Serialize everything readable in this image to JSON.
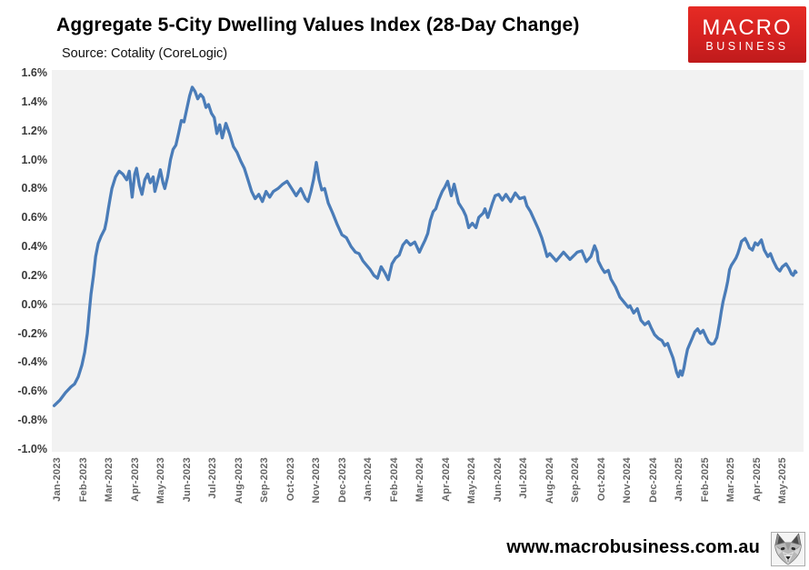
{
  "header": {
    "title": "Aggregate 5-City Dwelling Values Index (28-Day Change)",
    "source": "Source: Cotality (CoreLogic)",
    "logo": {
      "line1": "MACRO",
      "line2": "BUSINESS",
      "bg_color": "#d42120"
    }
  },
  "footer": {
    "url": "www.macrobusiness.com.au"
  },
  "chart_data": {
    "type": "line",
    "title": "Aggregate 5-City Dwelling Values Index (28-Day Change)",
    "source": "Cotality (CoreLogic)",
    "series_name": "28-day change (%)",
    "line_color": "#4a7cb8",
    "plot_bg": "#f2f2f2",
    "zero_gridline": true,
    "gridline_color": "#d4d4d4",
    "legend": "none",
    "ylim": [
      -1.0,
      1.6
    ],
    "y_tick_labels": [
      "1.6%",
      "1.4%",
      "1.2%",
      "1.0%",
      "0.8%",
      "0.6%",
      "0.4%",
      "0.2%",
      "0.0%",
      "-0.2%",
      "-0.4%",
      "-0.6%",
      "-0.8%",
      "-1.0%"
    ],
    "x_tick_labels": [
      "Jan-2023",
      "Feb-2023",
      "Mar-2023",
      "Apr-2023",
      "May-2023",
      "Jun-2023",
      "Jul-2023",
      "Aug-2023",
      "Sep-2023",
      "Oct-2023",
      "Nov-2023",
      "Dec-2023",
      "Jan-2024",
      "Feb-2024",
      "Mar-2024",
      "Apr-2024",
      "May-2024",
      "Jun-2024",
      "Jul-2024",
      "Aug-2024",
      "Sep-2024",
      "Oct-2024",
      "Nov-2024",
      "Dec-2024",
      "Jan-2025",
      "Feb-2025",
      "Mar-2025",
      "Apr-2025",
      "May-2025"
    ],
    "x_unit": "months (0 = Jan-2023 tick, 28 = May-2025 tick)",
    "points": [
      [
        -0.19,
        -0.7
      ],
      [
        0.04,
        -0.66
      ],
      [
        0.25,
        -0.61
      ],
      [
        0.46,
        -0.57
      ],
      [
        0.6,
        -0.55
      ],
      [
        0.74,
        -0.5
      ],
      [
        0.88,
        -0.42
      ],
      [
        0.99,
        -0.33
      ],
      [
        1.09,
        -0.2
      ],
      [
        1.16,
        -0.06
      ],
      [
        1.23,
        0.07
      ],
      [
        1.33,
        0.2
      ],
      [
        1.41,
        0.33
      ],
      [
        1.51,
        0.42
      ],
      [
        1.62,
        0.47
      ],
      [
        1.76,
        0.52
      ],
      [
        1.83,
        0.58
      ],
      [
        1.9,
        0.66
      ],
      [
        1.97,
        0.73
      ],
      [
        2.04,
        0.8
      ],
      [
        2.18,
        0.88
      ],
      [
        2.32,
        0.92
      ],
      [
        2.46,
        0.9
      ],
      [
        2.61,
        0.86
      ],
      [
        2.71,
        0.92
      ],
      [
        2.82,
        0.74
      ],
      [
        2.92,
        0.9
      ],
      [
        2.99,
        0.94
      ],
      [
        3.1,
        0.82
      ],
      [
        3.2,
        0.76
      ],
      [
        3.31,
        0.86
      ],
      [
        3.42,
        0.9
      ],
      [
        3.52,
        0.84
      ],
      [
        3.63,
        0.88
      ],
      [
        3.7,
        0.78
      ],
      [
        3.8,
        0.85
      ],
      [
        3.91,
        0.93
      ],
      [
        4.01,
        0.84
      ],
      [
        4.08,
        0.8
      ],
      [
        4.19,
        0.88
      ],
      [
        4.3,
        1.0
      ],
      [
        4.4,
        1.07
      ],
      [
        4.51,
        1.1
      ],
      [
        4.61,
        1.18
      ],
      [
        4.72,
        1.27
      ],
      [
        4.82,
        1.26
      ],
      [
        4.93,
        1.35
      ],
      [
        5.04,
        1.44
      ],
      [
        5.14,
        1.5
      ],
      [
        5.25,
        1.47
      ],
      [
        5.35,
        1.42
      ],
      [
        5.46,
        1.45
      ],
      [
        5.56,
        1.43
      ],
      [
        5.67,
        1.36
      ],
      [
        5.77,
        1.38
      ],
      [
        5.88,
        1.32
      ],
      [
        5.99,
        1.29
      ],
      [
        6.09,
        1.18
      ],
      [
        6.2,
        1.24
      ],
      [
        6.3,
        1.15
      ],
      [
        6.44,
        1.25
      ],
      [
        6.58,
        1.18
      ],
      [
        6.73,
        1.09
      ],
      [
        6.87,
        1.05
      ],
      [
        7.01,
        0.99
      ],
      [
        7.15,
        0.94
      ],
      [
        7.29,
        0.86
      ],
      [
        7.43,
        0.78
      ],
      [
        7.57,
        0.73
      ],
      [
        7.71,
        0.76
      ],
      [
        7.85,
        0.71
      ],
      [
        7.99,
        0.78
      ],
      [
        8.13,
        0.74
      ],
      [
        8.27,
        0.78
      ],
      [
        8.45,
        0.8
      ],
      [
        8.63,
        0.83
      ],
      [
        8.8,
        0.85
      ],
      [
        8.98,
        0.8
      ],
      [
        9.15,
        0.75
      ],
      [
        9.33,
        0.8
      ],
      [
        9.51,
        0.73
      ],
      [
        9.61,
        0.71
      ],
      [
        9.72,
        0.78
      ],
      [
        9.82,
        0.86
      ],
      [
        9.93,
        0.98
      ],
      [
        10.04,
        0.86
      ],
      [
        10.14,
        0.79
      ],
      [
        10.25,
        0.8
      ],
      [
        10.39,
        0.7
      ],
      [
        10.56,
        0.63
      ],
      [
        10.74,
        0.55
      ],
      [
        10.92,
        0.48
      ],
      [
        11.09,
        0.46
      ],
      [
        11.27,
        0.4
      ],
      [
        11.44,
        0.36
      ],
      [
        11.58,
        0.35
      ],
      [
        11.73,
        0.3
      ],
      [
        11.87,
        0.27
      ],
      [
        12.01,
        0.24
      ],
      [
        12.15,
        0.2
      ],
      [
        12.29,
        0.18
      ],
      [
        12.43,
        0.26
      ],
      [
        12.57,
        0.22
      ],
      [
        12.71,
        0.17
      ],
      [
        12.85,
        0.28
      ],
      [
        12.99,
        0.32
      ],
      [
        13.13,
        0.34
      ],
      [
        13.27,
        0.41
      ],
      [
        13.41,
        0.44
      ],
      [
        13.56,
        0.41
      ],
      [
        13.73,
        0.43
      ],
      [
        13.91,
        0.36
      ],
      [
        14.01,
        0.4
      ],
      [
        14.12,
        0.44
      ],
      [
        14.23,
        0.49
      ],
      [
        14.33,
        0.58
      ],
      [
        14.44,
        0.64
      ],
      [
        14.54,
        0.66
      ],
      [
        14.65,
        0.72
      ],
      [
        14.79,
        0.78
      ],
      [
        14.89,
        0.81
      ],
      [
        15.0,
        0.85
      ],
      [
        15.14,
        0.75
      ],
      [
        15.25,
        0.83
      ],
      [
        15.42,
        0.7
      ],
      [
        15.6,
        0.65
      ],
      [
        15.7,
        0.61
      ],
      [
        15.81,
        0.53
      ],
      [
        15.95,
        0.56
      ],
      [
        16.09,
        0.53
      ],
      [
        16.2,
        0.6
      ],
      [
        16.37,
        0.63
      ],
      [
        16.44,
        0.66
      ],
      [
        16.55,
        0.6
      ],
      [
        16.73,
        0.7
      ],
      [
        16.83,
        0.75
      ],
      [
        16.97,
        0.76
      ],
      [
        17.11,
        0.72
      ],
      [
        17.25,
        0.76
      ],
      [
        17.43,
        0.71
      ],
      [
        17.61,
        0.77
      ],
      [
        17.78,
        0.73
      ],
      [
        17.96,
        0.74
      ],
      [
        18.06,
        0.68
      ],
      [
        18.2,
        0.64
      ],
      [
        18.35,
        0.58
      ],
      [
        18.5,
        0.52
      ],
      [
        18.63,
        0.46
      ],
      [
        18.73,
        0.4
      ],
      [
        18.84,
        0.33
      ],
      [
        18.94,
        0.35
      ],
      [
        19.19,
        0.3
      ],
      [
        19.47,
        0.36
      ],
      [
        19.72,
        0.31
      ],
      [
        19.89,
        0.34
      ],
      [
        20.0,
        0.36
      ],
      [
        20.18,
        0.37
      ],
      [
        20.35,
        0.295
      ],
      [
        20.53,
        0.33
      ],
      [
        20.67,
        0.405
      ],
      [
        20.77,
        0.36
      ],
      [
        20.81,
        0.3
      ],
      [
        20.95,
        0.25
      ],
      [
        21.06,
        0.22
      ],
      [
        21.2,
        0.235
      ],
      [
        21.3,
        0.175
      ],
      [
        21.48,
        0.12
      ],
      [
        21.65,
        0.05
      ],
      [
        21.83,
        0.01
      ],
      [
        21.97,
        -0.02
      ],
      [
        22.04,
        -0.01
      ],
      [
        22.18,
        -0.06
      ],
      [
        22.32,
        -0.03
      ],
      [
        22.46,
        -0.11
      ],
      [
        22.61,
        -0.14
      ],
      [
        22.75,
        -0.12
      ],
      [
        22.85,
        -0.16
      ],
      [
        22.99,
        -0.21
      ],
      [
        23.13,
        -0.235
      ],
      [
        23.27,
        -0.25
      ],
      [
        23.38,
        -0.285
      ],
      [
        23.49,
        -0.27
      ],
      [
        23.59,
        -0.32
      ],
      [
        23.7,
        -0.37
      ],
      [
        23.77,
        -0.42
      ],
      [
        23.84,
        -0.47
      ],
      [
        23.91,
        -0.5
      ],
      [
        23.98,
        -0.46
      ],
      [
        24.05,
        -0.49
      ],
      [
        24.12,
        -0.44
      ],
      [
        24.19,
        -0.37
      ],
      [
        24.26,
        -0.31
      ],
      [
        24.33,
        -0.28
      ],
      [
        24.44,
        -0.235
      ],
      [
        24.54,
        -0.19
      ],
      [
        24.65,
        -0.17
      ],
      [
        24.75,
        -0.2
      ],
      [
        24.86,
        -0.18
      ],
      [
        24.96,
        -0.22
      ],
      [
        25.07,
        -0.26
      ],
      [
        25.18,
        -0.275
      ],
      [
        25.28,
        -0.27
      ],
      [
        25.39,
        -0.23
      ],
      [
        25.49,
        -0.13
      ],
      [
        25.56,
        -0.05
      ],
      [
        25.63,
        0.02
      ],
      [
        25.74,
        0.1
      ],
      [
        25.81,
        0.16
      ],
      [
        25.88,
        0.24
      ],
      [
        25.95,
        0.27
      ],
      [
        26.06,
        0.3
      ],
      [
        26.13,
        0.32
      ],
      [
        26.2,
        0.35
      ],
      [
        26.27,
        0.39
      ],
      [
        26.34,
        0.435
      ],
      [
        26.48,
        0.455
      ],
      [
        26.58,
        0.42
      ],
      [
        26.65,
        0.39
      ],
      [
        26.76,
        0.375
      ],
      [
        26.87,
        0.425
      ],
      [
        26.97,
        0.41
      ],
      [
        27.11,
        0.445
      ],
      [
        27.22,
        0.375
      ],
      [
        27.36,
        0.33
      ],
      [
        27.46,
        0.35
      ],
      [
        27.57,
        0.3
      ],
      [
        27.71,
        0.25
      ],
      [
        27.82,
        0.23
      ],
      [
        27.92,
        0.26
      ],
      [
        28.06,
        0.28
      ],
      [
        28.17,
        0.25
      ],
      [
        28.27,
        0.21
      ],
      [
        28.34,
        0.2
      ],
      [
        28.41,
        0.23
      ],
      [
        28.45,
        0.22
      ]
    ]
  }
}
